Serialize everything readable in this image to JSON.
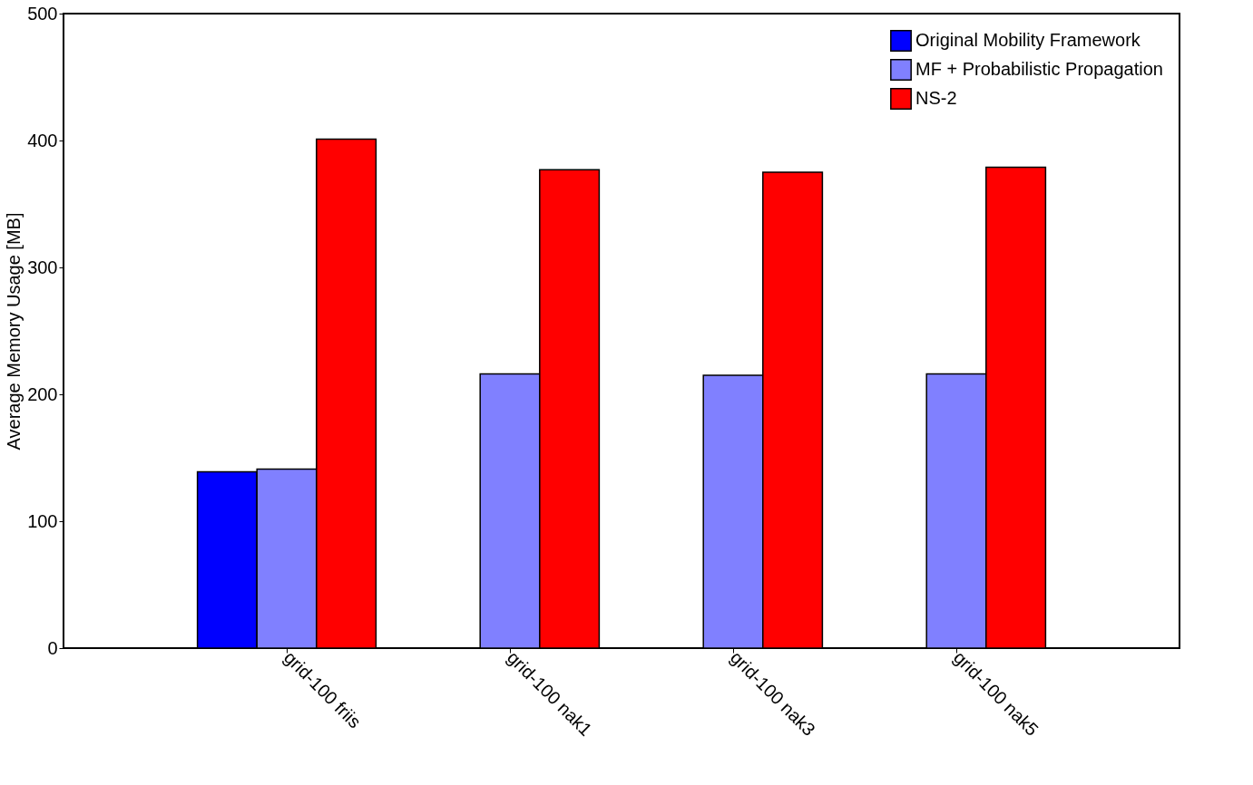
{
  "chart_data": {
    "type": "bar",
    "ylabel": "Average Memory Usage [MB]",
    "categories": [
      "grid-100 friis",
      "grid-100 nak1",
      "grid-100 nak3",
      "grid-100 nak5"
    ],
    "series": [
      {
        "name": "Original Mobility Framework",
        "color": "#0000ff",
        "values": [
          139,
          null,
          null,
          null
        ]
      },
      {
        "name": "MF + Probabilistic Propagation",
        "color": "#8080ff",
        "values": [
          141,
          216,
          215,
          216
        ]
      },
      {
        "name": "NS-2",
        "color": "#ff0000",
        "values": [
          401,
          377,
          375,
          379
        ]
      }
    ],
    "ylim": [
      0,
      500
    ],
    "yticks": [
      0,
      100,
      200,
      300,
      400,
      500
    ],
    "grid": false,
    "legend": "top right"
  }
}
